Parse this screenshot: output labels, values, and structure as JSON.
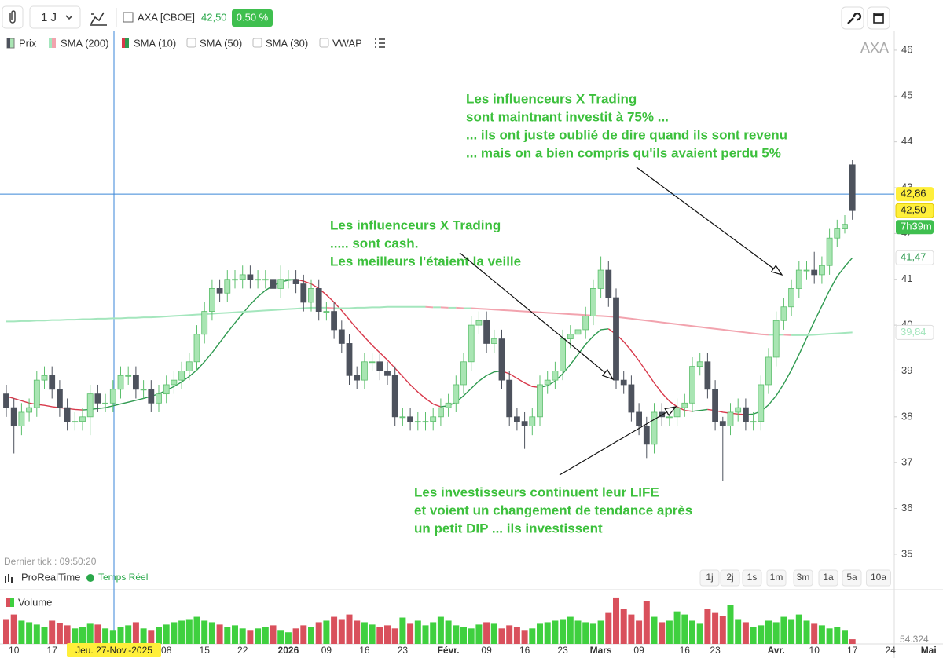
{
  "toolbar": {
    "interval": "1 J",
    "symbol": "AXA [CBOE]",
    "price": "42,50",
    "change": "0.50 %"
  },
  "indicators": [
    "Prix",
    "SMA (200)",
    "SMA (10)",
    "SMA (50)",
    "SMA (30)",
    "VWAP"
  ],
  "watermark": "AXA",
  "footer": {
    "last_tick": "Dernier tick : 09:50:20",
    "brand": "ProRealTime",
    "realtime": "Temps Réel"
  },
  "periods": [
    "1j",
    "2j",
    "1s",
    "1m",
    "3m",
    "1a",
    "5a",
    "10a"
  ],
  "chart_data": [
    {
      "type": "candlestick",
      "categories": [
        null,
        "10",
        null,
        null,
        null,
        null,
        "17",
        null,
        null,
        null,
        null,
        null,
        null,
        null,
        null,
        null,
        null,
        null,
        null,
        null,
        null,
        "08",
        null,
        null,
        null,
        null,
        "15",
        null,
        null,
        null,
        null,
        "22",
        null,
        null,
        null,
        null,
        null,
        "2026",
        null,
        null,
        null,
        null,
        "09",
        null,
        null,
        null,
        null,
        "16",
        null,
        null,
        null,
        null,
        "23",
        null,
        null,
        null,
        null,
        null,
        "Févr.",
        null,
        null,
        null,
        null,
        "09",
        null,
        null,
        null,
        null,
        "16",
        null,
        null,
        null,
        null,
        "23",
        null,
        null,
        null,
        null,
        "Mars",
        null,
        null,
        null,
        null,
        "09",
        null,
        null,
        null,
        null,
        null,
        "16",
        null,
        null,
        null,
        "23",
        null,
        null,
        null,
        null,
        null,
        null,
        null,
        "Avr.",
        null,
        null,
        null,
        null,
        "10",
        null,
        null,
        null,
        null,
        "17",
        null,
        null,
        null,
        null,
        "24",
        null,
        null,
        null,
        null,
        "Mai",
        null
      ],
      "open": [
        38.5,
        38.2,
        37.8,
        38.1,
        38.2,
        38.8,
        38.9,
        38.6,
        38.2,
        37.9,
        37.9,
        38.0,
        38.5,
        38.3,
        38.3,
        38.6,
        38.9,
        38.9,
        38.6,
        38.6,
        38.3,
        38.5,
        38.7,
        38.8,
        39.0,
        39.2,
        39.8,
        40.3,
        40.8,
        40.7,
        41.0,
        41.0,
        41.1,
        41.0,
        41.0,
        41.0,
        40.8,
        41.0,
        41.0,
        40.9,
        40.5,
        40.8,
        40.3,
        40.3,
        39.9,
        39.6,
        38.9,
        38.8,
        39.2,
        39.2,
        39.0,
        38.9,
        38.0,
        38.0,
        37.9,
        37.9,
        37.9,
        38.0,
        38.2,
        38.3,
        38.7,
        39.2,
        40.0,
        40.1,
        39.6,
        39.7,
        38.8,
        38.0,
        37.9,
        37.8,
        38.0,
        38.7,
        38.8,
        39.0,
        39.7,
        39.8,
        39.9,
        40.2,
        40.8,
        41.2,
        40.6,
        38.8,
        38.7,
        38.1,
        37.8,
        37.4,
        38.1,
        38.0,
        38.0,
        38.2,
        38.3,
        39.1,
        39.2,
        38.6,
        37.9,
        37.8,
        38.1,
        38.2,
        37.9,
        37.9,
        38.7,
        39.3,
        40.1,
        40.4,
        40.8,
        41.2,
        41.2,
        41.1,
        41.3,
        41.9,
        42.1,
        43.5,
        null,
        null,
        null,
        null,
        null,
        null,
        null,
        null,
        null,
        null,
        null
      ],
      "high": [
        38.7,
        38.4,
        38.3,
        38.4,
        39.0,
        39.1,
        39.1,
        38.8,
        38.4,
        38.1,
        38.2,
        38.7,
        38.7,
        38.5,
        38.8,
        39.1,
        39.1,
        39.1,
        38.8,
        38.8,
        38.7,
        38.9,
        39.0,
        39.2,
        39.4,
        40.0,
        40.5,
        41.0,
        41.0,
        41.2,
        41.2,
        41.3,
        41.3,
        41.2,
        41.2,
        41.2,
        41.3,
        41.2,
        41.2,
        41.1,
        41.0,
        41.0,
        40.5,
        40.5,
        40.1,
        39.8,
        39.1,
        39.4,
        39.4,
        39.4,
        39.2,
        39.1,
        38.2,
        38.2,
        38.1,
        38.1,
        38.2,
        38.4,
        38.5,
        38.9,
        39.4,
        40.2,
        40.3,
        40.3,
        39.9,
        39.9,
        39.0,
        38.2,
        38.1,
        38.2,
        38.9,
        39.0,
        39.2,
        39.9,
        40.0,
        40.1,
        40.4,
        41.0,
        41.5,
        41.4,
        40.8,
        39.0,
        38.9,
        38.3,
        38.0,
        38.3,
        38.3,
        38.2,
        38.4,
        38.5,
        39.3,
        39.4,
        39.4,
        38.8,
        38.0,
        38.3,
        38.4,
        38.4,
        38.1,
        38.9,
        39.5,
        40.3,
        40.6,
        41.0,
        41.4,
        41.4,
        41.6,
        41.5,
        42.1,
        42.3,
        42.4,
        43.6,
        null,
        null,
        null,
        null,
        null,
        null,
        null,
        null,
        null,
        null,
        null
      ],
      "low": [
        38.0,
        37.2,
        37.6,
        37.9,
        38.0,
        38.6,
        38.4,
        38.0,
        37.7,
        37.7,
        37.7,
        37.6,
        38.1,
        38.1,
        38.1,
        38.4,
        38.7,
        38.4,
        38.4,
        38.1,
        38.1,
        38.3,
        38.5,
        38.6,
        38.8,
        39.0,
        39.6,
        40.1,
        40.5,
        40.5,
        40.8,
        40.8,
        40.8,
        40.8,
        40.8,
        40.6,
        40.6,
        40.8,
        40.7,
        40.3,
        40.3,
        40.1,
        40.1,
        39.7,
        39.4,
        38.7,
        38.6,
        38.6,
        39.0,
        38.8,
        38.7,
        37.8,
        37.8,
        37.7,
        37.7,
        37.7,
        37.7,
        37.8,
        38.0,
        38.1,
        38.5,
        39.0,
        39.8,
        39.4,
        39.4,
        38.6,
        37.8,
        37.7,
        37.3,
        37.6,
        37.8,
        38.5,
        38.6,
        38.8,
        39.5,
        39.6,
        39.7,
        40.0,
        40.6,
        40.4,
        38.6,
        38.5,
        37.9,
        37.6,
        37.1,
        37.2,
        37.8,
        37.8,
        37.8,
        38.0,
        38.1,
        38.9,
        38.4,
        37.7,
        36.6,
        37.6,
        37.9,
        37.7,
        37.7,
        37.7,
        38.5,
        39.1,
        39.9,
        40.2,
        40.6,
        41.0,
        40.9,
        40.9,
        41.1,
        41.7,
        42.0,
        42.3,
        null,
        null,
        null,
        null,
        null,
        null,
        null,
        null,
        null,
        null,
        null
      ],
      "close": [
        38.2,
        37.8,
        38.1,
        38.2,
        38.8,
        38.9,
        38.6,
        38.2,
        37.9,
        37.9,
        38.0,
        38.5,
        38.3,
        38.3,
        38.6,
        38.9,
        38.9,
        38.6,
        38.6,
        38.3,
        38.5,
        38.7,
        38.8,
        39.0,
        39.2,
        39.8,
        40.3,
        40.8,
        40.7,
        41.0,
        41.0,
        41.1,
        41.0,
        41.0,
        41.0,
        40.8,
        41.0,
        41.0,
        40.9,
        40.5,
        40.8,
        40.3,
        40.3,
        39.9,
        39.6,
        38.9,
        38.8,
        39.2,
        39.2,
        39.0,
        38.9,
        38.0,
        38.0,
        37.9,
        37.9,
        37.9,
        38.0,
        38.2,
        38.3,
        38.7,
        39.2,
        40.0,
        40.1,
        39.6,
        39.7,
        38.8,
        38.0,
        37.9,
        37.8,
        38.0,
        38.7,
        38.8,
        39.0,
        39.7,
        39.8,
        39.9,
        40.2,
        40.8,
        41.2,
        40.6,
        38.8,
        38.7,
        38.1,
        37.8,
        37.4,
        38.1,
        38.0,
        38.0,
        38.2,
        38.3,
        39.1,
        39.2,
        38.6,
        37.9,
        37.8,
        38.1,
        38.2,
        37.9,
        37.9,
        38.7,
        39.3,
        40.1,
        40.4,
        40.8,
        41.2,
        41.2,
        41.1,
        41.3,
        41.9,
        42.1,
        42.2,
        42.5,
        null,
        null,
        null,
        null,
        null,
        null,
        null,
        null,
        null,
        null,
        null
      ],
      "up_color": "#a9e5b3",
      "up_border": "#5cbf6c",
      "down_color": "#4d525d",
      "series": [
        {
          "name": "SMA (10)",
          "up_color": "#2f9a50",
          "down_color": "#d8394b",
          "last_label": "41,47",
          "values": [
            38.45,
            38.4,
            38.35,
            38.3,
            38.27,
            38.25,
            38.22,
            38.2,
            38.18,
            38.16,
            38.15,
            38.16,
            38.18,
            38.2,
            38.24,
            38.28,
            38.32,
            38.36,
            38.4,
            38.45,
            38.5,
            38.58,
            38.66,
            38.76,
            38.88,
            39.02,
            39.2,
            39.4,
            39.62,
            39.84,
            40.05,
            40.25,
            40.45,
            40.62,
            40.76,
            40.86,
            40.94,
            40.98,
            41.0,
            40.96,
            40.9,
            40.8,
            40.66,
            40.5,
            40.32,
            40.12,
            39.92,
            39.74,
            39.56,
            39.4,
            39.24,
            39.06,
            38.88,
            38.7,
            38.54,
            38.4,
            38.28,
            38.22,
            38.24,
            38.32,
            38.46,
            38.62,
            38.78,
            38.9,
            38.98,
            39.0,
            38.94,
            38.84,
            38.74,
            38.66,
            38.64,
            38.68,
            38.78,
            38.94,
            39.14,
            39.36,
            39.58,
            39.76,
            39.9,
            39.92,
            39.8,
            39.64,
            39.44,
            39.22,
            38.98,
            38.74,
            38.52,
            38.34,
            38.22,
            38.14,
            38.12,
            38.14,
            38.16,
            38.14,
            38.1,
            38.08,
            38.06,
            38.05,
            38.06,
            38.12,
            38.26,
            38.46,
            38.72,
            39.02,
            39.36,
            39.72,
            40.08,
            40.42,
            40.76,
            41.06,
            41.28,
            41.47,
            null,
            null,
            null,
            null,
            null,
            null,
            null,
            null,
            null,
            null,
            null
          ]
        },
        {
          "name": "SMA (200)",
          "up_color": "#a4e6bd",
          "down_color": "#f2a3ae",
          "last_label": "39,84",
          "values": [
            40.08,
            40.08,
            40.09,
            40.09,
            40.1,
            40.1,
            40.11,
            40.11,
            40.12,
            40.12,
            40.13,
            40.13,
            40.14,
            40.14,
            40.15,
            40.15,
            40.16,
            40.16,
            40.17,
            40.17,
            40.18,
            40.19,
            40.2,
            40.21,
            40.22,
            40.23,
            40.24,
            40.25,
            40.26,
            40.27,
            40.28,
            40.29,
            40.3,
            40.31,
            40.32,
            40.33,
            40.34,
            40.35,
            40.36,
            40.37,
            40.38,
            40.38,
            40.38,
            40.37,
            40.37,
            40.37,
            40.38,
            40.38,
            40.39,
            40.39,
            40.4,
            40.4,
            40.4,
            40.4,
            40.4,
            40.4,
            40.39,
            40.39,
            40.38,
            40.38,
            40.37,
            40.37,
            40.36,
            40.35,
            40.34,
            40.33,
            40.32,
            40.31,
            40.3,
            40.29,
            40.28,
            40.27,
            40.26,
            40.25,
            40.24,
            40.23,
            40.22,
            40.21,
            40.2,
            40.19,
            40.18,
            40.16,
            40.14,
            40.12,
            40.1,
            40.08,
            40.06,
            40.04,
            40.02,
            40.0,
            39.98,
            39.96,
            39.94,
            39.92,
            39.9,
            39.88,
            39.86,
            39.84,
            39.82,
            39.8,
            39.79,
            39.79,
            39.79,
            39.78,
            39.78,
            39.78,
            39.79,
            39.8,
            39.81,
            39.82,
            39.83,
            39.84,
            null,
            null,
            null,
            null,
            null,
            null,
            null,
            null,
            null,
            null,
            null
          ]
        }
      ],
      "ylim": [
        34.33,
        46.41
      ],
      "yticks": [
        35,
        36,
        37,
        38,
        39,
        40,
        41,
        42,
        43,
        44,
        45,
        46
      ],
      "grid": false,
      "last_price": {
        "value": 42.5,
        "label": "42,50"
      },
      "countdown": "7h39m",
      "crosshair": {
        "x_label": "Jeu. 27-Nov.-2025",
        "value": 42.86,
        "label": "42,86"
      },
      "annotation_color": "#3cc03c",
      "annotations": [
        [
          "Les influenceurs X Trading",
          "sont maintnant investit à 75% ...",
          "... ils ont juste oublié de dire quand ils sont revenu",
          "... mais on a bien compris qu'ils avaient perdu 5%"
        ],
        [
          "Les influenceurs X Trading",
          "..... sont cash.",
          "Les meilleurs l'étaient la veille"
        ],
        [
          "Les investisseurs continuent leur LIFE",
          "et voient un changement de tendance après",
          "un petit DIP ... ils investissent"
        ]
      ]
    },
    {
      "type": "bar",
      "title": "Volume",
      "up_color": "#3fd03f",
      "down_color": "#d9505c",
      "scale_label": "54.324",
      "ylim": [
        0,
        64
      ],
      "values": [
        32,
        38,
        30,
        28,
        25,
        22,
        30,
        27,
        24,
        20,
        22,
        26,
        25,
        20,
        18,
        22,
        24,
        28,
        20,
        18,
        22,
        25,
        28,
        30,
        32,
        35,
        30,
        28,
        25,
        22,
        24,
        20,
        18,
        20,
        22,
        24,
        18,
        15,
        20,
        24,
        22,
        28,
        30,
        35,
        32,
        38,
        30,
        28,
        25,
        22,
        24,
        20,
        34,
        26,
        30,
        24,
        28,
        35,
        30,
        24,
        22,
        20,
        25,
        28,
        26,
        20,
        24,
        22,
        18,
        20,
        26,
        28,
        30,
        32,
        35,
        30,
        28,
        26,
        30,
        40,
        60,
        45,
        38,
        30,
        55,
        35,
        28,
        30,
        42,
        38,
        30,
        26,
        45,
        40,
        36,
        50,
        32,
        28,
        22,
        24,
        30,
        28,
        35,
        32,
        38,
        30,
        26,
        24,
        20,
        22,
        18,
        6,
        null,
        null,
        null,
        null,
        null,
        null,
        null,
        null,
        null,
        null,
        null
      ]
    }
  ]
}
